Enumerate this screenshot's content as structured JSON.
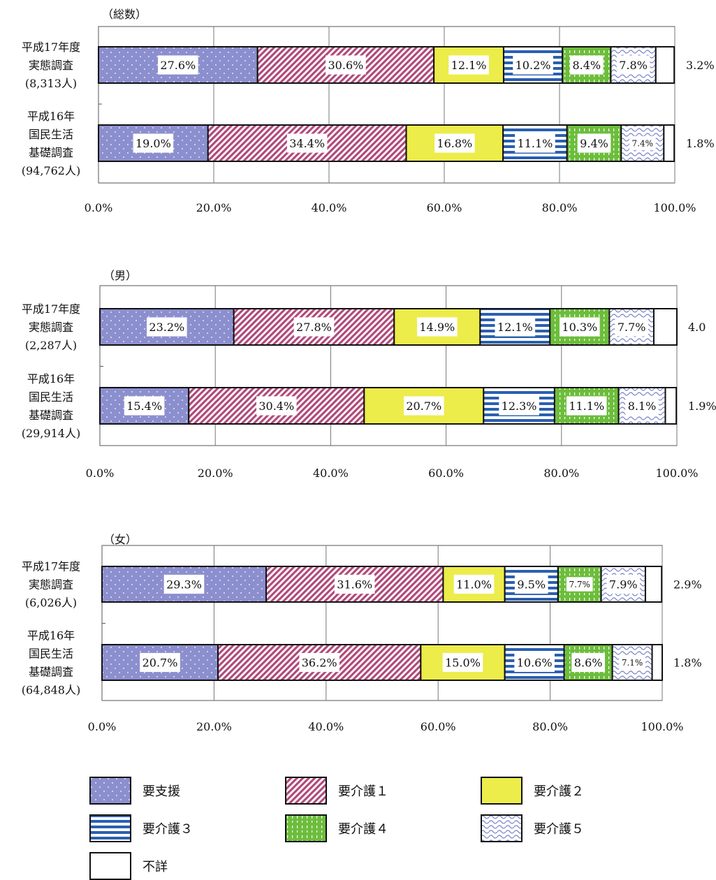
{
  "chart_data": [
    {
      "type": "bar",
      "orientation": "horizontal",
      "stacked": true,
      "title": "（総数）",
      "xlim": [
        0,
        100
      ],
      "x_ticks": [
        "0.0%",
        "20.0%",
        "40.0%",
        "60.0%",
        "80.0%",
        "100.0%"
      ],
      "grid": true,
      "categories": [
        {
          "lines": [
            "平成17年度",
            "実態調査",
            "(8,313人)"
          ]
        },
        {
          "lines": [
            "平成16年",
            "国民生活",
            "基礎調査",
            "(94,762人)"
          ]
        }
      ],
      "series": [
        {
          "name": "要支援",
          "values": [
            27.6,
            19.0
          ],
          "labels": [
            "27.6%",
            "19.0%"
          ]
        },
        {
          "name": "要介護１",
          "values": [
            30.6,
            34.4
          ],
          "labels": [
            "30.6%",
            "34.4%"
          ]
        },
        {
          "name": "要介護２",
          "values": [
            12.1,
            16.8
          ],
          "labels": [
            "12.1%",
            "16.8%"
          ]
        },
        {
          "name": "要介護３",
          "values": [
            10.2,
            11.1
          ],
          "labels": [
            "10.2%",
            "11.1%"
          ]
        },
        {
          "name": "要介護４",
          "values": [
            8.4,
            9.4
          ],
          "labels": [
            "8.4%",
            "9.4%"
          ]
        },
        {
          "name": "要介護５",
          "values": [
            7.8,
            7.4
          ],
          "labels": [
            "7.8%",
            "7.4%"
          ]
        },
        {
          "name": "不詳",
          "values": [
            3.2,
            1.8
          ],
          "labels": [
            "3.2%",
            "1.8%"
          ]
        }
      ]
    },
    {
      "type": "bar",
      "orientation": "horizontal",
      "stacked": true,
      "title": "（男）",
      "xlim": [
        0,
        100
      ],
      "x_ticks": [
        "0.0%",
        "20.0%",
        "40.0%",
        "60.0%",
        "80.0%",
        "100.0%"
      ],
      "grid": true,
      "categories": [
        {
          "lines": [
            "平成17年度",
            "実態調査",
            "(2,287人)"
          ]
        },
        {
          "lines": [
            "平成16年",
            "国民生活",
            "基礎調査",
            "(29,914人)"
          ]
        }
      ],
      "series": [
        {
          "name": "要支援",
          "values": [
            23.2,
            15.4
          ],
          "labels": [
            "23.2%",
            "15.4%"
          ]
        },
        {
          "name": "要介護１",
          "values": [
            27.8,
            30.4
          ],
          "labels": [
            "27.8%",
            "30.4%"
          ]
        },
        {
          "name": "要介護２",
          "values": [
            14.9,
            20.7
          ],
          "labels": [
            "14.9%",
            "20.7%"
          ]
        },
        {
          "name": "要介護３",
          "values": [
            12.1,
            12.3
          ],
          "labels": [
            "12.1%",
            "12.3%"
          ]
        },
        {
          "name": "要介護４",
          "values": [
            10.3,
            11.1
          ],
          "labels": [
            "10.3%",
            "11.1%"
          ]
        },
        {
          "name": "要介護５",
          "values": [
            7.7,
            8.1
          ],
          "labels": [
            "7.7%",
            "8.1%"
          ]
        },
        {
          "name": "不詳",
          "values": [
            4.0,
            1.9
          ],
          "labels": [
            "4.0",
            "1.9%"
          ]
        }
      ]
    },
    {
      "type": "bar",
      "orientation": "horizontal",
      "stacked": true,
      "title": "（女）",
      "xlim": [
        0,
        100
      ],
      "x_ticks": [
        "0.0%",
        "20.0%",
        "40.0%",
        "60.0%",
        "80.0%",
        "100.0%"
      ],
      "grid": true,
      "categories": [
        {
          "lines": [
            "平成17年度",
            "実態調査",
            "(6,026人)"
          ]
        },
        {
          "lines": [
            "平成16年",
            "国民生活",
            "基礎調査",
            "(64,848人)"
          ]
        }
      ],
      "series": [
        {
          "name": "要支援",
          "values": [
            29.3,
            20.7
          ],
          "labels": [
            "29.3%",
            "20.7%"
          ]
        },
        {
          "name": "要介護１",
          "values": [
            31.6,
            36.2
          ],
          "labels": [
            "31.6%",
            "36.2%"
          ]
        },
        {
          "name": "要介護２",
          "values": [
            11.0,
            15.0
          ],
          "labels": [
            "11.0%",
            "15.0%"
          ]
        },
        {
          "name": "要介護３",
          "values": [
            9.5,
            10.6
          ],
          "labels": [
            "9.5%",
            "10.6%"
          ]
        },
        {
          "name": "要介護４",
          "values": [
            7.7,
            8.6
          ],
          "labels": [
            "7.7%",
            "8.6%"
          ]
        },
        {
          "name": "要介護５",
          "values": [
            7.9,
            7.1
          ],
          "labels": [
            "7.9%",
            "7.1%"
          ]
        },
        {
          "name": "不詳",
          "values": [
            2.9,
            1.8
          ],
          "labels": [
            "2.9%",
            "1.8%"
          ]
        }
      ]
    }
  ],
  "legend": {
    "items": [
      {
        "label": "要支援",
        "pattern": "dots",
        "color": "#8c8fce"
      },
      {
        "label": "要介護１",
        "pattern": "diagonal",
        "color": "#b04a7a"
      },
      {
        "label": "要介護２",
        "pattern": "solid",
        "color": "#ecec4a"
      },
      {
        "label": "要介護３",
        "pattern": "hstripes",
        "color": "#2a5fb0"
      },
      {
        "label": "要介護４",
        "pattern": "dashes",
        "color": "#6dbd3c"
      },
      {
        "label": "要介護５",
        "pattern": "waves",
        "color": "#7c86c8"
      },
      {
        "label": "不詳",
        "pattern": "none",
        "color": "#ffffff"
      }
    ]
  }
}
